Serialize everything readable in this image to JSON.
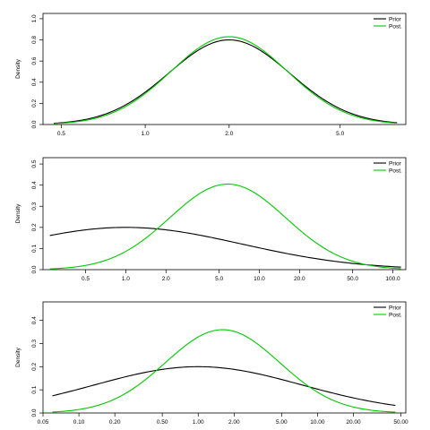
{
  "chart_data": [
    {
      "type": "line",
      "x_scale": "log",
      "ylabel": "Density",
      "xlim": [
        0.43,
        8.6
      ],
      "ylim": [
        0,
        1.05
      ],
      "x_ticks": [
        0.5,
        1.0,
        2.0,
        5.0
      ],
      "x_tick_labels": [
        "0.5",
        "1.0",
        "2.0",
        "5.0"
      ],
      "y_ticks": [
        0,
        0.2,
        0.4,
        0.6,
        0.8,
        1.0
      ],
      "y_tick_labels": [
        "0.0",
        "0.2",
        "0.4",
        "0.6",
        "0.8",
        "1.0"
      ],
      "legend_position": "top-right",
      "series": [
        {
          "name": "Prior",
          "color": "#000000",
          "curve": "lognormal_density",
          "center": 2.0,
          "sigma": 0.5,
          "peak": 0.8,
          "x_range": [
            0.47,
            8.0
          ]
        },
        {
          "name": "Post.",
          "color": "#00c800",
          "curve": "lognormal_density",
          "center": 2.0,
          "sigma": 0.48,
          "peak": 0.83,
          "x_range": [
            0.47,
            8.0
          ]
        }
      ]
    },
    {
      "type": "line",
      "x_scale": "log",
      "ylabel": "Density",
      "xlim": [
        0.24,
        125
      ],
      "ylim": [
        0,
        0.53
      ],
      "x_ticks": [
        0.5,
        1.0,
        2.0,
        5.0,
        10.0,
        20.0,
        50.0,
        100.0
      ],
      "x_tick_labels": [
        "0.5",
        "1.0",
        "2.0",
        "5.0",
        "10.0",
        "20.0",
        "50.0",
        "100.0"
      ],
      "y_ticks": [
        0,
        0.1,
        0.2,
        0.3,
        0.4,
        0.5
      ],
      "y_tick_labels": [
        "0.0",
        "0.1",
        "0.2",
        "0.3",
        "0.4",
        "0.5"
      ],
      "legend_position": "top-right",
      "series": [
        {
          "name": "Prior",
          "color": "#000000",
          "curve": "lognormal_density",
          "center": 1.0,
          "sigma": 2.0,
          "peak": 0.2,
          "x_range": [
            0.27,
            115
          ]
        },
        {
          "name": "Post.",
          "color": "#00c800",
          "curve": "lognormal_density",
          "center": 5.8,
          "sigma": 1.0,
          "peak": 0.405,
          "x_range": [
            0.27,
            115
          ]
        }
      ]
    },
    {
      "type": "line",
      "x_scale": "log",
      "ylabel": "Density",
      "xlim": [
        0.05,
        55
      ],
      "ylim": [
        0,
        0.48
      ],
      "x_ticks": [
        0.05,
        0.1,
        0.2,
        0.5,
        1.0,
        2.0,
        5.0,
        10.0,
        20.0,
        50.0
      ],
      "x_tick_labels": [
        "0.05",
        "0.10",
        "0.20",
        "0.50",
        "1.00",
        "2.00",
        "5.00",
        "10.00",
        "20.00",
        "50.00"
      ],
      "y_ticks": [
        0,
        0.1,
        0.2,
        0.3,
        0.4
      ],
      "y_tick_labels": [
        "0.0",
        "0.1",
        "0.2",
        "0.3",
        "0.4"
      ],
      "legend_position": "top-right",
      "series": [
        {
          "name": "Prior",
          "color": "#000000",
          "curve": "lognormal_density",
          "center": 1.0,
          "sigma": 2.0,
          "peak": 0.2,
          "x_range": [
            0.06,
            45
          ]
        },
        {
          "name": "Post.",
          "color": "#00c800",
          "curve": "lognormal_density",
          "center": 1.6,
          "sigma": 1.1,
          "peak": 0.36,
          "x_range": [
            0.06,
            45
          ]
        }
      ]
    }
  ]
}
